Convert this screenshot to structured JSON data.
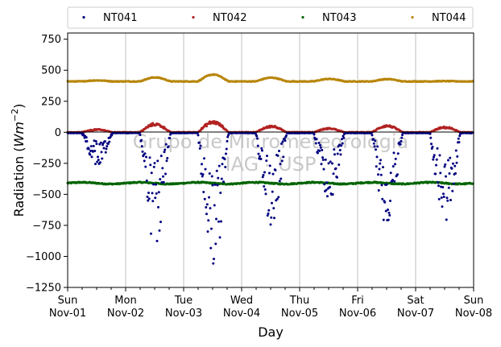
{
  "chart_data": {
    "type": "scatter",
    "xlabel": "Day",
    "ylabel_prefix": "Radiation (",
    "ylabel_unit": "Wm",
    "ylabel_sup": "−2",
    "ylabel_suffix": ")",
    "ylim": [
      -1250,
      800
    ],
    "yticks": [
      -1250,
      -1000,
      -750,
      -500,
      -250,
      0,
      250,
      500,
      750
    ],
    "ytick_labels": [
      "−1250",
      "−1000",
      "−750",
      "−500",
      "−250",
      "0",
      "250",
      "500",
      "750"
    ],
    "xlim": [
      "2020-11-01",
      "2020-11-08"
    ],
    "xticks": [
      {
        "day": "Sun",
        "date": "Nov-01"
      },
      {
        "day": "Mon",
        "date": "Nov-02"
      },
      {
        "day": "Tue",
        "date": "Nov-03"
      },
      {
        "day": "Wed",
        "date": "Nov-04"
      },
      {
        "day": "Thu",
        "date": "Nov-05"
      },
      {
        "day": "Fri",
        "date": "Nov-06"
      },
      {
        "day": "Sat",
        "date": "Nov-07"
      },
      {
        "day": "Sun",
        "date": "Nov-08"
      }
    ],
    "grid": "vertical",
    "legend_position": "top",
    "watermark": [
      "Grupo de Micrometeorologia",
      "IAG - USP"
    ],
    "series": [
      {
        "name": "NT041",
        "color": "#000080",
        "baseline": -5,
        "daily_minimum": [
          -260,
          -920,
          -1150,
          -770,
          -560,
          -780,
          -750
        ]
      },
      {
        "name": "NT042",
        "color": "#b22222",
        "baseline": 0,
        "daily_peak": [
          25,
          75,
          95,
          55,
          35,
          60,
          45
        ]
      },
      {
        "name": "NT043",
        "color": "#006400",
        "baseline": -410,
        "daily_range": [
          -425,
          -395
        ]
      },
      {
        "name": "NT044",
        "color": "#b8860b",
        "baseline": 410,
        "daily_peak": [
          418,
          442,
          465,
          440,
          430,
          428,
          412
        ]
      }
    ]
  }
}
